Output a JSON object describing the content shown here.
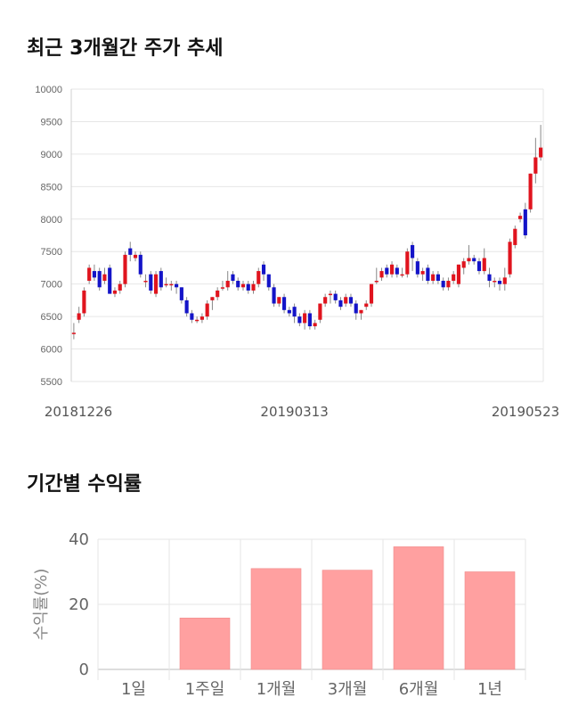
{
  "colors": {
    "up": "#e0141e",
    "down": "#1414c8",
    "bar": "#ffa0a0",
    "grid": "#e6e6e6"
  },
  "sections": {
    "price_title": "최근 3개월간 주가 추세",
    "return_title": "기간별 수익률"
  },
  "chart_data": [
    {
      "type": "candlestick",
      "title": "최근 3개월간 주가 추세",
      "ylim": [
        5500,
        10000
      ],
      "yticks": [
        5500,
        6000,
        6500,
        7000,
        7500,
        8000,
        8500,
        9000,
        9500,
        10000
      ],
      "x_tick_labels": [
        {
          "index": 0,
          "label": "20181226"
        },
        {
          "index": 43,
          "label": "20190313"
        },
        {
          "index": 87,
          "label": "20190523"
        }
      ],
      "candles": [
        {
          "o": 6250,
          "c": 6250,
          "h": 6400,
          "l": 6150
        },
        {
          "o": 6450,
          "c": 6550,
          "h": 6650,
          "l": 6400
        },
        {
          "o": 6550,
          "c": 6900,
          "h": 6950,
          "l": 6500
        },
        {
          "o": 7050,
          "c": 7250,
          "h": 7300,
          "l": 7000
        },
        {
          "o": 7200,
          "c": 7100,
          "h": 7300,
          "l": 7050
        },
        {
          "o": 7200,
          "c": 6950,
          "h": 7250,
          "l": 6900
        },
        {
          "o": 7050,
          "c": 7150,
          "h": 7250,
          "l": 7000
        },
        {
          "o": 7250,
          "c": 6850,
          "h": 7300,
          "l": 6850
        },
        {
          "o": 6850,
          "c": 6900,
          "h": 6950,
          "l": 6800
        },
        {
          "o": 6900,
          "c": 7000,
          "h": 7050,
          "l": 6850
        },
        {
          "o": 7000,
          "c": 7450,
          "h": 7500,
          "l": 6950
        },
        {
          "o": 7550,
          "c": 7450,
          "h": 7650,
          "l": 7350
        },
        {
          "o": 7400,
          "c": 7450,
          "h": 7500,
          "l": 7350
        },
        {
          "o": 7450,
          "c": 7150,
          "h": 7500,
          "l": 7100
        },
        {
          "o": 7050,
          "c": 7050,
          "h": 7150,
          "l": 6950
        },
        {
          "o": 7150,
          "c": 6900,
          "h": 7200,
          "l": 6850
        },
        {
          "o": 6850,
          "c": 7150,
          "h": 7200,
          "l": 6800
        },
        {
          "o": 7200,
          "c": 6950,
          "h": 7250,
          "l": 6900
        },
        {
          "o": 7000,
          "c": 7000,
          "h": 7100,
          "l": 6950
        },
        {
          "o": 7000,
          "c": 7000,
          "h": 7050,
          "l": 6900
        },
        {
          "o": 7000,
          "c": 6950,
          "h": 7050,
          "l": 6850
        },
        {
          "o": 6950,
          "c": 6750,
          "h": 6950,
          "l": 6700
        },
        {
          "o": 6750,
          "c": 6550,
          "h": 6800,
          "l": 6500
        },
        {
          "o": 6550,
          "c": 6450,
          "h": 6600,
          "l": 6400
        },
        {
          "o": 6450,
          "c": 6450,
          "h": 6500,
          "l": 6400
        },
        {
          "o": 6450,
          "c": 6500,
          "h": 6550,
          "l": 6400
        },
        {
          "o": 6500,
          "c": 6700,
          "h": 6750,
          "l": 6450
        },
        {
          "o": 6750,
          "c": 6800,
          "h": 6800,
          "l": 6600
        },
        {
          "o": 6800,
          "c": 6900,
          "h": 6950,
          "l": 6750
        },
        {
          "o": 6950,
          "c": 6950,
          "h": 7050,
          "l": 6900
        },
        {
          "o": 6950,
          "c": 7050,
          "h": 7200,
          "l": 6900
        },
        {
          "o": 7150,
          "c": 7050,
          "h": 7200,
          "l": 7000
        },
        {
          "o": 7050,
          "c": 6950,
          "h": 7100,
          "l": 6900
        },
        {
          "o": 6950,
          "c": 7000,
          "h": 7050,
          "l": 6900
        },
        {
          "o": 7000,
          "c": 6900,
          "h": 7050,
          "l": 6850
        },
        {
          "o": 6900,
          "c": 7000,
          "h": 7050,
          "l": 6850
        },
        {
          "o": 7000,
          "c": 7200,
          "h": 7250,
          "l": 6950
        },
        {
          "o": 7300,
          "c": 7150,
          "h": 7350,
          "l": 7050
        },
        {
          "o": 7150,
          "c": 6950,
          "h": 7150,
          "l": 6900
        },
        {
          "o": 6950,
          "c": 6700,
          "h": 7000,
          "l": 6650
        },
        {
          "o": 6700,
          "c": 6800,
          "h": 6800,
          "l": 6650
        },
        {
          "o": 6800,
          "c": 6600,
          "h": 6850,
          "l": 6550
        },
        {
          "o": 6600,
          "c": 6550,
          "h": 6650,
          "l": 6500
        },
        {
          "o": 6650,
          "c": 6500,
          "h": 6700,
          "l": 6400
        },
        {
          "o": 6500,
          "c": 6400,
          "h": 6550,
          "l": 6350
        },
        {
          "o": 6400,
          "c": 6550,
          "h": 6600,
          "l": 6300
        },
        {
          "o": 6550,
          "c": 6350,
          "h": 6600,
          "l": 6300
        },
        {
          "o": 6350,
          "c": 6400,
          "h": 6450,
          "l": 6300
        },
        {
          "o": 6450,
          "c": 6700,
          "h": 6700,
          "l": 6400
        },
        {
          "o": 6700,
          "c": 6800,
          "h": 6850,
          "l": 6650
        },
        {
          "o": 6850,
          "c": 6850,
          "h": 6900,
          "l": 6700
        },
        {
          "o": 6850,
          "c": 6750,
          "h": 6900,
          "l": 6700
        },
        {
          "o": 6750,
          "c": 6650,
          "h": 6800,
          "l": 6600
        },
        {
          "o": 6700,
          "c": 6800,
          "h": 6850,
          "l": 6650
        },
        {
          "o": 6800,
          "c": 6700,
          "h": 6850,
          "l": 6650
        },
        {
          "o": 6700,
          "c": 6550,
          "h": 6750,
          "l": 6450
        },
        {
          "o": 6550,
          "c": 6600,
          "h": 6600,
          "l": 6450
        },
        {
          "o": 6650,
          "c": 6700,
          "h": 6750,
          "l": 6600
        },
        {
          "o": 6700,
          "c": 7000,
          "h": 7000,
          "l": 6650
        },
        {
          "o": 7050,
          "c": 7050,
          "h": 7250,
          "l": 7000
        },
        {
          "o": 7100,
          "c": 7200,
          "h": 7250,
          "l": 7050
        },
        {
          "o": 7250,
          "c": 7150,
          "h": 7300,
          "l": 7100
        },
        {
          "o": 7150,
          "c": 7300,
          "h": 7350,
          "l": 7100
        },
        {
          "o": 7250,
          "c": 7150,
          "h": 7300,
          "l": 7100
        },
        {
          "o": 7150,
          "c": 7150,
          "h": 7250,
          "l": 7100
        },
        {
          "o": 7150,
          "c": 7500,
          "h": 7550,
          "l": 7100
        },
        {
          "o": 7600,
          "c": 7400,
          "h": 7650,
          "l": 7200
        },
        {
          "o": 7350,
          "c": 7150,
          "h": 7400,
          "l": 7100
        },
        {
          "o": 7150,
          "c": 7200,
          "h": 7250,
          "l": 7050
        },
        {
          "o": 7250,
          "c": 7050,
          "h": 7300,
          "l": 7000
        },
        {
          "o": 7050,
          "c": 7150,
          "h": 7200,
          "l": 7000
        },
        {
          "o": 7150,
          "c": 7050,
          "h": 7200,
          "l": 7000
        },
        {
          "o": 7050,
          "c": 6950,
          "h": 7100,
          "l": 6900
        },
        {
          "o": 6950,
          "c": 7050,
          "h": 7100,
          "l": 6900
        },
        {
          "o": 7050,
          "c": 7150,
          "h": 7200,
          "l": 7000
        },
        {
          "o": 7000,
          "c": 7300,
          "h": 7300,
          "l": 6950
        },
        {
          "o": 7250,
          "c": 7350,
          "h": 7400,
          "l": 7150
        },
        {
          "o": 7350,
          "c": 7400,
          "h": 7600,
          "l": 7300
        },
        {
          "o": 7400,
          "c": 7350,
          "h": 7450,
          "l": 7300
        },
        {
          "o": 7350,
          "c": 7200,
          "h": 7400,
          "l": 7150
        },
        {
          "o": 7200,
          "c": 7400,
          "h": 7550,
          "l": 7150
        },
        {
          "o": 7150,
          "c": 7050,
          "h": 7250,
          "l": 6950
        },
        {
          "o": 7050,
          "c": 7050,
          "h": 7100,
          "l": 6950
        },
        {
          "o": 7050,
          "c": 7000,
          "h": 7100,
          "l": 6900
        },
        {
          "o": 7000,
          "c": 7100,
          "h": 7250,
          "l": 6900
        },
        {
          "o": 7150,
          "c": 7650,
          "h": 7700,
          "l": 7100
        },
        {
          "o": 7600,
          "c": 7850,
          "h": 7900,
          "l": 7550
        },
        {
          "o": 8000,
          "c": 8050,
          "h": 8100,
          "l": 7950
        },
        {
          "o": 8150,
          "c": 7750,
          "h": 8250,
          "l": 7700
        },
        {
          "o": 8150,
          "c": 8700,
          "h": 8700,
          "l": 8100
        },
        {
          "o": 8700,
          "c": 8950,
          "h": 9250,
          "l": 8550
        },
        {
          "o": 8950,
          "c": 9100,
          "h": 9450,
          "l": 8900
        }
      ]
    },
    {
      "type": "bar",
      "title": "기간별 수익률",
      "categories": [
        "1일",
        "1주일",
        "1개월",
        "3개월",
        "6개월",
        "1년"
      ],
      "values": [
        0,
        15.8,
        31.0,
        30.5,
        37.7,
        30.0
      ],
      "ylabel": "수익률(%)",
      "ylim": [
        0,
        40
      ],
      "yticks": [
        0,
        20,
        40
      ]
    }
  ]
}
